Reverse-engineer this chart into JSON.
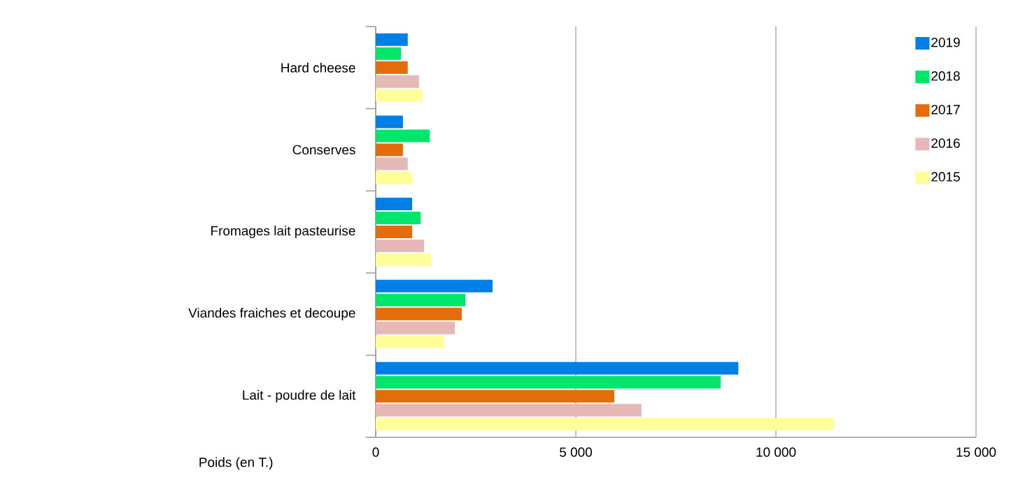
{
  "chart_data": {
    "type": "bar",
    "orientation": "horizontal",
    "categories": [
      "Hard cheese",
      "Conserves",
      "Fromages lait pasteurise",
      "Viandes fraiches et decoupe",
      "Lait - poudre de lait"
    ],
    "series": [
      {
        "name": "2019",
        "color": "#0080e6",
        "values": [
          800,
          680,
          910,
          2920,
          9060
        ]
      },
      {
        "name": "2018",
        "color": "#00e66a",
        "values": [
          630,
          1350,
          1120,
          2240,
          8620
        ]
      },
      {
        "name": "2017",
        "color": "#e46c0a",
        "values": [
          800,
          680,
          910,
          2150,
          5960
        ]
      },
      {
        "name": "2016",
        "color": "#e6b8b7",
        "values": [
          1080,
          800,
          1210,
          1980,
          6640
        ]
      },
      {
        "name": "2015",
        "color": "#ffff99",
        "values": [
          1170,
          910,
          1380,
          1710,
          11450
        ]
      }
    ],
    "xlabel": "Poids (en T.)",
    "xlim": [
      0,
      15000
    ],
    "xticks": [
      0,
      {
        "value": 5000,
        "label": "5 000"
      },
      {
        "value": 10000,
        "label": "10 000"
      },
      {
        "value": 15000,
        "label": "15 000"
      }
    ],
    "grid": "x",
    "legend": "top right"
  }
}
